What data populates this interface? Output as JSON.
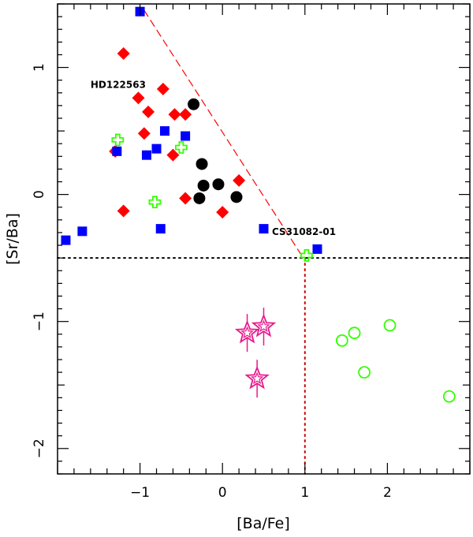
{
  "chart_data": {
    "type": "scatter",
    "xlabel": "[Ba/Fe]",
    "ylabel": "[Sr/Ba]",
    "xlim": [
      -2.0,
      3.0
    ],
    "ylim": [
      -2.2,
      1.5
    ],
    "x_ticks": [
      -1,
      0,
      1,
      2
    ],
    "x_tick_labels": [
      "−1",
      "0",
      "1",
      "2"
    ],
    "y_ticks": [
      -2,
      -1,
      0,
      1
    ],
    "y_tick_labels": [
      "−2",
      "−1",
      "0",
      "1"
    ],
    "annotations": [
      {
        "text": "HD122563",
        "x": -1.6,
        "y": 0.84
      },
      {
        "text": "CS31082-01",
        "x": 0.6,
        "y": -0.32
      }
    ],
    "series": [
      {
        "name": "red-diamonds",
        "marker": "diamond",
        "color": "#ff0000",
        "points": [
          [
            -1.2,
            1.11
          ],
          [
            -1.02,
            0.76
          ],
          [
            -0.72,
            0.83
          ],
          [
            -0.9,
            0.65
          ],
          [
            -0.95,
            0.48
          ],
          [
            -0.58,
            0.63
          ],
          [
            -0.45,
            0.63
          ],
          [
            -1.3,
            0.34
          ],
          [
            -0.6,
            0.31
          ],
          [
            -1.2,
            -0.13
          ],
          [
            -0.45,
            -0.03
          ],
          [
            0.0,
            -0.14
          ],
          [
            0.2,
            0.11
          ]
        ]
      },
      {
        "name": "blue-squares",
        "marker": "square",
        "color": "#0000ff",
        "points": [
          [
            -1.0,
            1.44
          ],
          [
            -1.28,
            0.34
          ],
          [
            -0.7,
            0.5
          ],
          [
            -0.8,
            0.36
          ],
          [
            -0.92,
            0.31
          ],
          [
            -0.45,
            0.46
          ],
          [
            -1.9,
            -0.36
          ],
          [
            -1.7,
            -0.29
          ],
          [
            -0.75,
            -0.27
          ],
          [
            0.5,
            -0.27
          ],
          [
            1.15,
            -0.43
          ]
        ]
      },
      {
        "name": "black-circles",
        "marker": "filled-circle",
        "color": "#000000",
        "points": [
          [
            -0.35,
            0.71
          ],
          [
            -0.25,
            0.24
          ],
          [
            -0.23,
            0.07
          ],
          [
            -0.05,
            0.08
          ],
          [
            -0.28,
            -0.03
          ],
          [
            0.17,
            -0.02
          ]
        ]
      },
      {
        "name": "green-crosses",
        "marker": "open-cross",
        "color": "#33ff00",
        "points": [
          [
            -1.27,
            0.43
          ],
          [
            -0.5,
            0.37
          ],
          [
            -0.82,
            -0.06
          ],
          [
            1.02,
            -0.48
          ]
        ]
      },
      {
        "name": "green-circles",
        "marker": "open-circle",
        "color": "#33ff00",
        "points": [
          [
            1.45,
            -1.15
          ],
          [
            1.6,
            -1.09
          ],
          [
            2.03,
            -1.03
          ],
          [
            1.72,
            -1.4
          ],
          [
            2.75,
            -1.59
          ]
        ]
      },
      {
        "name": "magenta-stars",
        "marker": "star",
        "color": "#e8198c",
        "points": [
          [
            0.3,
            -1.09
          ],
          [
            0.5,
            -1.04
          ],
          [
            0.42,
            -1.45
          ]
        ]
      }
    ],
    "reference_lines": [
      {
        "name": "dashed-trend-line",
        "style": "dashed",
        "color": "#ff0000",
        "from": [
          -0.95,
          1.45
        ],
        "to": [
          0.95,
          -0.47
        ]
      },
      {
        "name": "horizontal-dotted-line",
        "style": "dotted",
        "color": "#000000",
        "from": [
          -2.0,
          -0.5
        ],
        "to": [
          3.0,
          -0.5
        ]
      },
      {
        "name": "vertical-dotted-line",
        "style": "dotted",
        "color": "#cc0000",
        "from": [
          1.0,
          -0.5
        ],
        "to": [
          1.0,
          -2.2
        ]
      }
    ]
  }
}
